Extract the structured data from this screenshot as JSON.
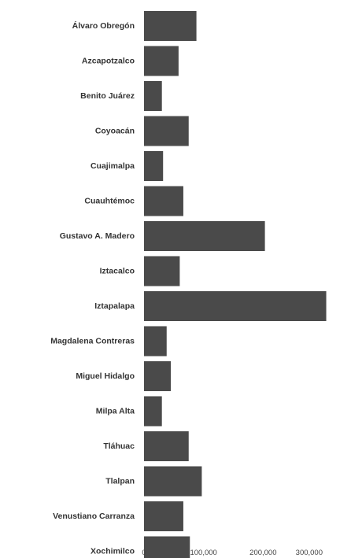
{
  "chart_data": {
    "type": "bar",
    "orientation": "horizontal",
    "title": "",
    "xlabel": "",
    "ylabel": "",
    "categories": [
      "Álvaro Obregón",
      "Azcapotzalco",
      "Benito Juárez",
      "Coyoacán",
      "Cuajimalpa",
      "Cuauhtémoc",
      "Gustavo A. Madero",
      "Iztacalco",
      "Iztapalapa",
      "Magdalena Contreras",
      "Miguel Hidalgo",
      "Milpa Alta",
      "Tláhuac",
      "Tlalpan",
      "Venustiano Carranza",
      "Xochimilco"
    ],
    "values": [
      88000,
      58000,
      30000,
      75000,
      32000,
      66000,
      203000,
      60000,
      306000,
      38000,
      45000,
      30000,
      75000,
      97000,
      66000,
      77000
    ],
    "xlim": [
      0,
      300000
    ],
    "xticks": [
      "0",
      "100,000",
      "200,000",
      "300,000"
    ],
    "xtick_values": [
      0,
      100000,
      200000,
      300000
    ],
    "grid": false,
    "legend": "none",
    "bar_color": "#4a4a4a",
    "text_color": "#333333"
  }
}
